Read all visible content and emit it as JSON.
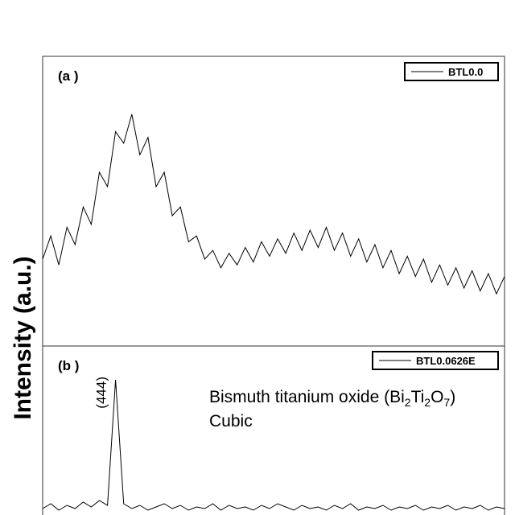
{
  "chart_data": [
    {
      "type": "line",
      "panel_label": "(a )",
      "legend": "BTL0.0",
      "series": [
        {
          "name": "BTL0.0",
          "color": "#000000",
          "values": [
            30,
            38,
            28,
            41,
            35,
            48,
            42,
            60,
            55,
            74,
            70,
            80,
            66,
            72,
            55,
            60,
            45,
            48,
            36,
            38,
            30,
            33,
            27,
            32,
            28,
            34,
            29,
            36,
            31,
            37,
            32,
            39,
            33,
            40,
            34,
            41,
            33,
            39,
            31,
            37,
            29,
            35,
            27,
            33,
            25,
            31,
            24,
            30,
            22,
            28,
            21,
            27,
            20,
            26,
            19,
            25,
            18,
            24
          ]
        }
      ],
      "ylim": [
        0,
        100
      ]
    },
    {
      "type": "line",
      "panel_label": "(b )",
      "legend": "BTL0.0626E",
      "annotation": [
        "Bismuth titanium oxide (Bi",
        "2",
        "Ti",
        "2",
        "O",
        "7",
        ")"
      ],
      "annotation_2": "Cubic",
      "peak_labels": [
        {
          "label": "(444)",
          "index": 9
        }
      ],
      "series": [
        {
          "name": "BTL0.0626E",
          "color": "#000000",
          "values": [
            4,
            7,
            3,
            6,
            4,
            8,
            5,
            9,
            6,
            84,
            7,
            4,
            6,
            3,
            5,
            7,
            4,
            6,
            3,
            5,
            4,
            7,
            3,
            6,
            4,
            5,
            3,
            6,
            4,
            7,
            5,
            3,
            6,
            4,
            5,
            3,
            6,
            4,
            7,
            3,
            5,
            4,
            6,
            3,
            5,
            4,
            6,
            3,
            5,
            4,
            6,
            3,
            5,
            4,
            6,
            3,
            5,
            4
          ]
        }
      ],
      "ylim": [
        0,
        100
      ]
    }
  ],
  "y_axis_label": "Intensity (a.u.)"
}
